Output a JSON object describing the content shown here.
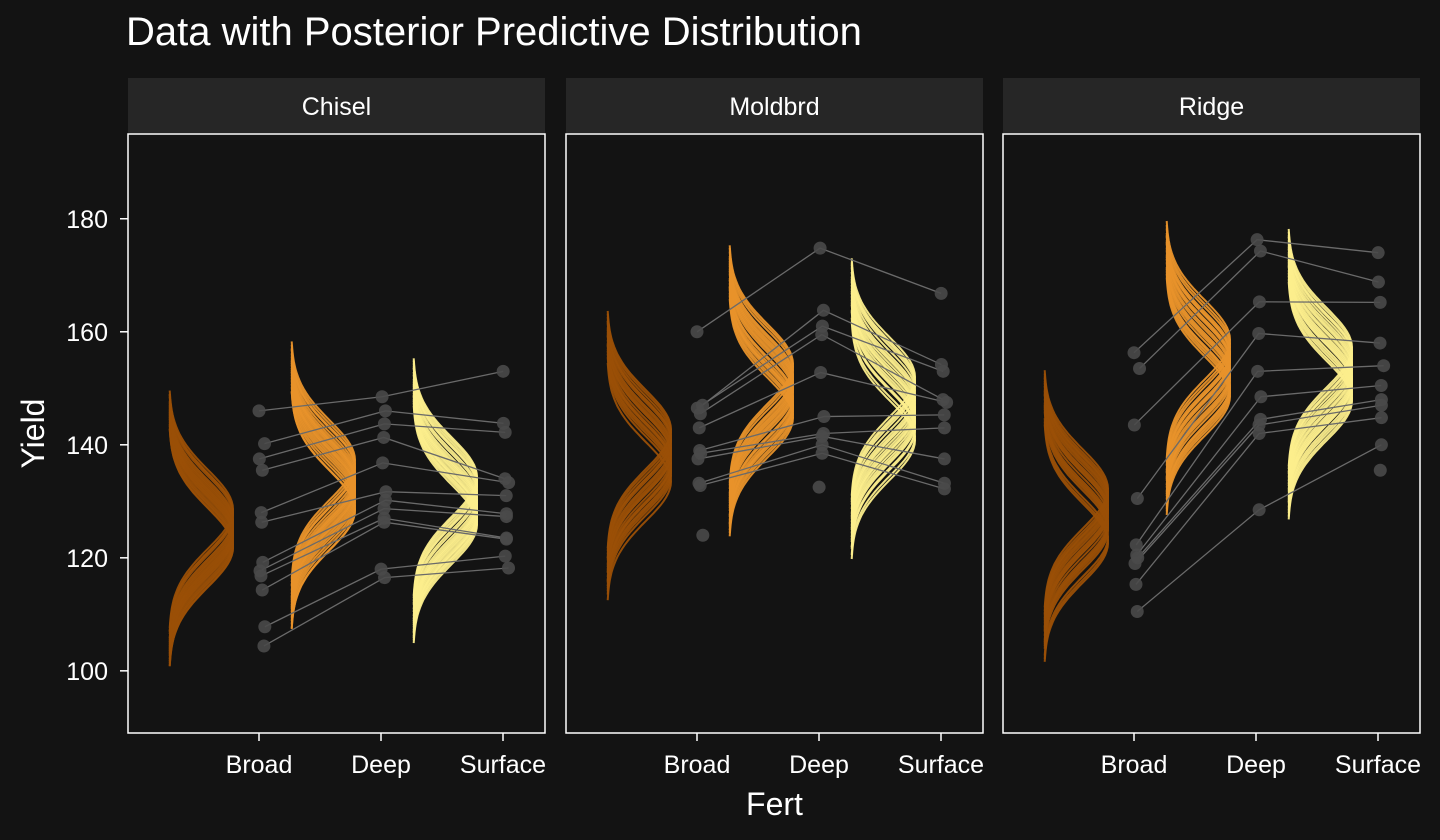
{
  "colors": {
    "background": "#131313",
    "strip": "#262626",
    "panel_border": "#ffffff",
    "text": "#ffffff",
    "point": "#4a4a4a",
    "line": "#6a6a6a",
    "Broad": "#9a4f06",
    "Deep": "#e8922a",
    "Surface": "#fcee8c"
  },
  "chart_data": {
    "type": "scatter",
    "title": "Data with Posterior Predictive Distribution",
    "xlabel": "Fert",
    "ylabel": "Yield",
    "ylim": [
      89,
      195
    ],
    "yticks": [
      100,
      120,
      140,
      160,
      180
    ],
    "categories": [
      "Broad",
      "Deep",
      "Surface"
    ],
    "panels": [
      "Chisel",
      "Moldbrd",
      "Ridge"
    ],
    "grid": false,
    "legend": "none",
    "observed": {
      "Chisel": {
        "Broad": [
          146,
          140.2,
          137.5,
          135.5,
          128,
          126.3,
          119.2,
          117.7,
          116.8,
          114.3,
          107.8,
          104.4
        ],
        "Deep": [
          148.5,
          146,
          143.7,
          141.3,
          136.8,
          131.7,
          130.2,
          128.7,
          127,
          126.3,
          118,
          116.5
        ],
        "Surface": [
          153,
          143.8,
          142.2,
          134,
          133.3,
          131,
          127.8,
          127.3,
          123.5,
          123.3,
          120.3,
          118.2
        ]
      },
      "Moldbrd": {
        "Broad": [
          160,
          147,
          146.5,
          145.5,
          143,
          139,
          138.5,
          137.5,
          133.2,
          132.8,
          124
        ],
        "Deep": [
          174.8,
          163.8,
          161,
          159.5,
          152.8,
          145,
          142,
          141.5,
          140,
          138.5,
          132.5
        ],
        "Surface": [
          166.8,
          154.2,
          153,
          148,
          147.5,
          145.3,
          143,
          137.5,
          133.2,
          132.2
        ]
      },
      "Ridge": {
        "Broad": [
          156.3,
          153.5,
          143.5,
          130.5,
          122.3,
          120.5,
          120,
          119,
          115.3,
          110.5
        ],
        "Deep": [
          176.3,
          174.3,
          165.3,
          159.7,
          153,
          148.5,
          144.5,
          143.5,
          142,
          128.5
        ],
        "Surface": [
          174,
          168.8,
          165.2,
          158,
          154,
          150.5,
          148,
          147,
          144.8,
          140,
          135.5
        ]
      }
    },
    "posterior_predictive_means": {
      "Chisel": {
        "Broad": [
          124.5,
          127.5,
          125.8,
          121.8,
          124.2,
          123.6,
          128.6,
          126.5,
          122.7,
          126.8,
          123.1,
          125.4,
          121.9,
          127.9,
          124.8,
          123.9,
          126.1,
          128,
          122.4,
          125.1
        ],
        "Deep": [
          134.6,
          131.4,
          129.8,
          136.7,
          133.5,
          130.4,
          135.2,
          132.6,
          128.5,
          137.3,
          131.9,
          133.1,
          130.9,
          135.9,
          129.2,
          134.1,
          132.2,
          136.1,
          128.4,
          133.8
        ],
        "Surface": [
          129.5,
          132.6,
          127.6,
          133.9,
          126.4,
          130.7,
          131.4,
          125.9,
          128.2,
          134.3,
          127.1,
          129.1,
          132.9,
          126.8,
          130.2,
          133.4,
          128.7,
          131.9,
          127.8,
          129.8
        ]
      },
      "Moldbrd": {
        "Broad": [
          138.5,
          135.6,
          141,
          136.6,
          139.8,
          134.5,
          142.2,
          137.6,
          140.5,
          136,
          138.9,
          133.5,
          141.6,
          137,
          139.4,
          135.1,
          140.9,
          136.8,
          138.3,
          142.7
        ],
        "Deep": [
          150.2,
          147.6,
          153.2,
          145.4,
          151.1,
          148.5,
          154.3,
          146.5,
          149.8,
          152.4,
          147.1,
          150.7,
          145.9,
          153.8,
          148.2,
          151.5,
          146.9,
          152,
          149.3,
          144.8
        ],
        "Surface": [
          145.3,
          148.8,
          142.6,
          150.4,
          143.8,
          146.7,
          151.3,
          141.5,
          147.9,
          144.2,
          149.6,
          145.9,
          152,
          142.9,
          147.3,
          140.8,
          148.3,
          144.7,
          150.9,
          146.2
        ]
      },
      "Ridge": {
        "Broad": [
          128.8,
          125.4,
          131.1,
          123.7,
          127.9,
          130.3,
          124.9,
          132.2,
          126.5,
          129.4,
          122.6,
          128.1,
          130.8,
          125.8,
          127.2,
          131.6,
          123.1,
          129.9,
          126.1,
          128.5
        ],
        "Deep": [
          154.6,
          151.3,
          157.9,
          149.7,
          155.9,
          152.7,
          158.6,
          150.5,
          156.5,
          153.4,
          149.2,
          155.2,
          151.9,
          157.3,
          153.9,
          150.2,
          156.1,
          152.3,
          154.9,
          148.6
        ],
        "Surface": [
          152.1,
          155.2,
          149.4,
          157.2,
          150.6,
          153.7,
          148.3,
          156.1,
          151.3,
          154.6,
          147.8,
          153.1,
          149.9,
          155.8,
          152.7,
          150.9,
          154.1,
          148.9,
          156.7,
          151.7
        ]
      }
    },
    "posterior_predictive_sd": 7
  }
}
